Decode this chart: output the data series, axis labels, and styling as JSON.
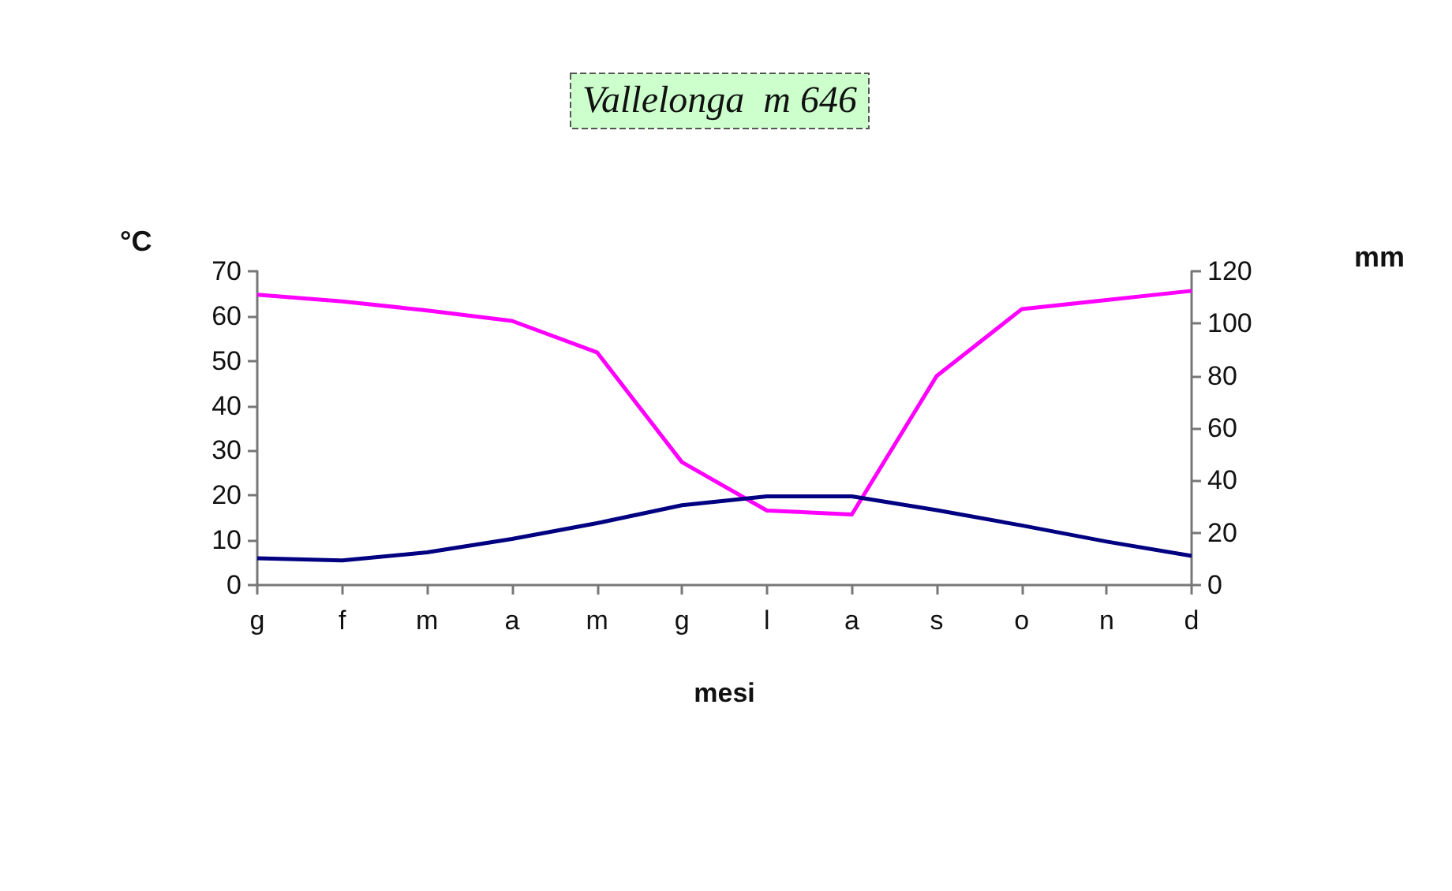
{
  "chart_data": {
    "type": "line",
    "title": "Vallelonga  m 646",
    "xlabel": "mesi",
    "ylabel": "°C",
    "y2label": "mm",
    "categories": [
      "g",
      "f",
      "m",
      "a",
      "m",
      "g",
      "l",
      "a",
      "s",
      "o",
      "n",
      "d"
    ],
    "series": [
      {
        "color": "#ff00ff",
        "axis": "y2",
        "values": [
          111,
          108.5,
          105,
          101,
          89,
          47,
          28.5,
          27,
          80,
          105.5,
          109,
          112.5
        ]
      },
      {
        "color": "#000080",
        "values": [
          6,
          5.5,
          7.3,
          10.3,
          13.8,
          17.8,
          19.8,
          19.8,
          16.7,
          13.3,
          9.7,
          6.5
        ]
      }
    ],
    "ylim": [
      0,
      70
    ],
    "yticks": [
      0,
      10,
      20,
      30,
      40,
      50,
      60,
      70
    ],
    "y2lim": [
      0,
      120
    ],
    "y2ticks": [
      0,
      20,
      40,
      60,
      80,
      100,
      120
    ],
    "grid": false,
    "marker": "none",
    "line_style": "solid"
  }
}
